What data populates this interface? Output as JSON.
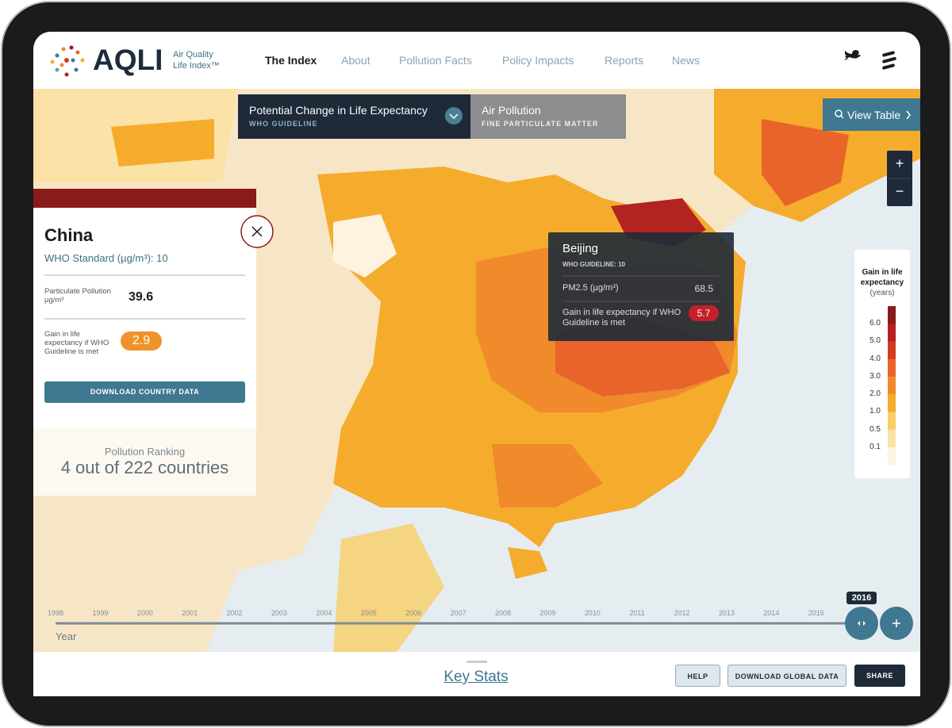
{
  "header": {
    "logo": "AQLI",
    "logo_sub": [
      "Air Quality",
      "Life Index™"
    ],
    "nav": [
      "The Index",
      "About",
      "Pollution Facts",
      "Policy Impacts",
      "Reports",
      "News"
    ]
  },
  "tabs": [
    {
      "title": "Potential Change in Life Expectancy",
      "subtitle": "WHO GUIDELINE"
    },
    {
      "title": "Air Pollution",
      "subtitle": "FINE PARTICULATE MATTER"
    }
  ],
  "view_table": "View Table",
  "zoom": [
    "+",
    "−"
  ],
  "country_panel": {
    "name": "China",
    "standard": "WHO Standard (µg/m³): 10",
    "pollution_label": "Particulate Pollution µg/m³",
    "pollution_value": 39.6,
    "gain_label": "Gain in life expectancy if WHO Guideline is met",
    "gain_value": 2.9,
    "download": "DOWNLOAD COUNTRY DATA",
    "ranking_label": "Pollution Ranking",
    "ranking": "4 out of 222 countries"
  },
  "tooltip": {
    "name": "Beijing",
    "subtitle": "WHO GUIDELINE: 10",
    "pm_label": "PM2.5 (µg/m³)",
    "pm_value": 68.5,
    "gain_label": "Gain in life expectancy if WHO Guideline is met",
    "gain_value": 5.7
  },
  "legend": {
    "title": "Gain in life expectancy",
    "unit": "(years)",
    "stops": [
      {
        "value": 6,
        "label": "6.0"
      },
      {
        "value": 5,
        "label": "5.0"
      },
      {
        "value": 4,
        "label": "4.0"
      },
      {
        "value": 3,
        "label": "3.0"
      },
      {
        "value": 2,
        "label": "2.0"
      },
      {
        "value": 1,
        "label": "1.0"
      },
      0.5,
      0.1
    ],
    "colors": [
      "#8b1a1a",
      "#b3231f",
      "#d33c20",
      "#e8642a",
      "#f08a2b",
      "#f5ac2d",
      "#f9cd67",
      "#fbe2a6",
      "#fdf3de"
    ]
  },
  "timeline": {
    "years": [
      1998,
      1999,
      2000,
      2001,
      2002,
      2003,
      2004,
      2005,
      2006,
      2007,
      2008,
      2009,
      2010,
      2011,
      2012,
      2013,
      2014,
      2015
    ],
    "current": 2016,
    "label": "Year"
  },
  "footer": {
    "key_stats": "Key Stats",
    "buttons": [
      "HELP",
      "DOWNLOAD GLOBAL DATA",
      "SHARE"
    ]
  }
}
